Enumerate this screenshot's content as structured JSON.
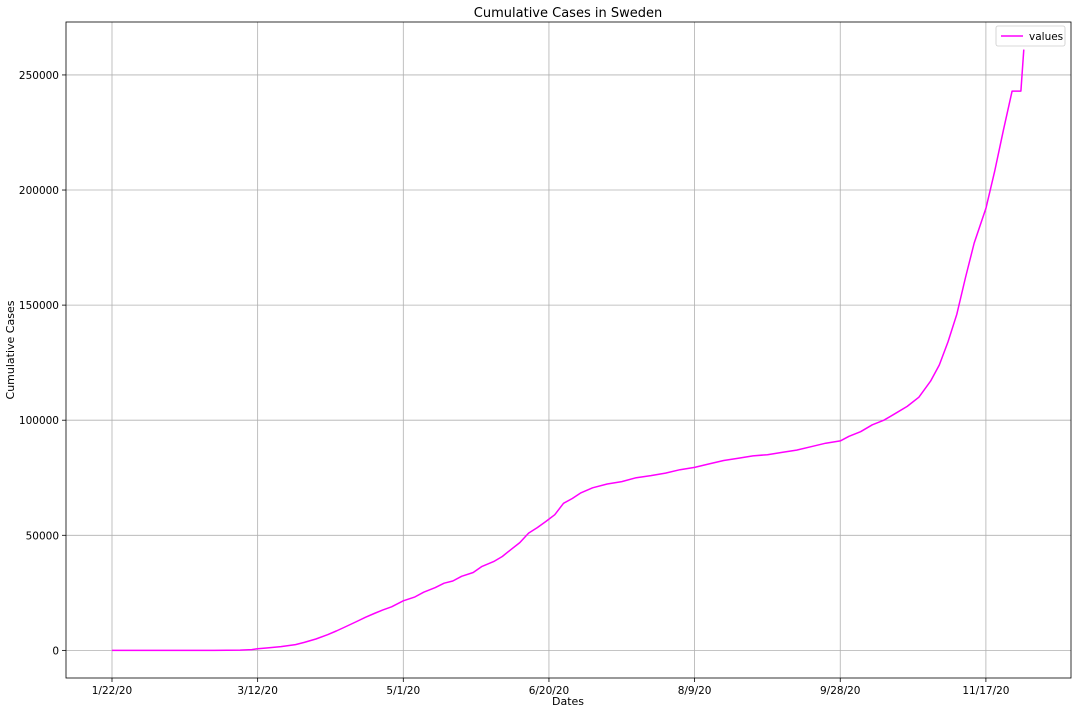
{
  "chart_data": {
    "type": "line",
    "title": "Cumulative Cases in Sweden",
    "xlabel": "Dates",
    "ylabel": "Cumulative Cases",
    "grid": true,
    "legend_position": "top-right",
    "x_tick_labels": [
      "1/22/20",
      "3/12/20",
      "5/1/20",
      "6/20/20",
      "8/9/20",
      "9/28/20",
      "11/17/20"
    ],
    "y_ticks": [
      0,
      50000,
      100000,
      150000,
      200000,
      250000
    ],
    "ylim": [
      -12000,
      273000
    ],
    "series_color": "#ff00ff",
    "series": [
      {
        "name": "values",
        "points": [
          [
            "1/22/20",
            0
          ],
          [
            "2/1/20",
            1
          ],
          [
            "2/26/20",
            5
          ],
          [
            "3/6/20",
            137
          ],
          [
            "3/10/20",
            355
          ],
          [
            "3/12/20",
            687
          ],
          [
            "3/15/20",
            1040
          ],
          [
            "3/20/20",
            1639
          ],
          [
            "3/25/20",
            2526
          ],
          [
            "3/28/20",
            3447
          ],
          [
            "4/1/20",
            4947
          ],
          [
            "4/5/20",
            6830
          ],
          [
            "4/8/20",
            8419
          ],
          [
            "4/11/20",
            10151
          ],
          [
            "4/15/20",
            12540
          ],
          [
            "4/18/20",
            14385
          ],
          [
            "4/21/20",
            16004
          ],
          [
            "4/24/20",
            17567
          ],
          [
            "4/27/20",
            18926
          ],
          [
            "5/1/20",
            21520
          ],
          [
            "5/5/20",
            23216
          ],
          [
            "5/8/20",
            25265
          ],
          [
            "5/12/20",
            27272
          ],
          [
            "5/15/20",
            29207
          ],
          [
            "5/18/20",
            30143
          ],
          [
            "5/21/20",
            32172
          ],
          [
            "5/25/20",
            33843
          ],
          [
            "5/28/20",
            36476
          ],
          [
            "6/1/20",
            38589
          ],
          [
            "6/4/20",
            40803
          ],
          [
            "6/7/20",
            43887
          ],
          [
            "6/10/20",
            46814
          ],
          [
            "6/13/20",
            50931
          ],
          [
            "6/16/20",
            53323
          ],
          [
            "6/19/20",
            56043
          ],
          [
            "6/22/20",
            58932
          ],
          [
            "6/25/20",
            63890
          ],
          [
            "6/28/20",
            66000
          ],
          [
            "7/1/20",
            68451
          ],
          [
            "7/5/20",
            70639
          ],
          [
            "7/10/20",
            72286
          ],
          [
            "7/15/20",
            73344
          ],
          [
            "7/20/20",
            75000
          ],
          [
            "7/25/20",
            75926
          ],
          [
            "7/30/20",
            77000
          ],
          [
            "8/4/20",
            78500
          ],
          [
            "8/9/20",
            79495
          ],
          [
            "8/14/20",
            81000
          ],
          [
            "8/19/20",
            82500
          ],
          [
            "8/24/20",
            83500
          ],
          [
            "8/29/20",
            84500
          ],
          [
            "9/3/20",
            85000
          ],
          [
            "9/8/20",
            86000
          ],
          [
            "9/13/20",
            87000
          ],
          [
            "9/18/20",
            88500
          ],
          [
            "9/23/20",
            90000
          ],
          [
            "9/28/20",
            91000
          ],
          [
            "10/1/20",
            93000
          ],
          [
            "10/5/20",
            95000
          ],
          [
            "10/9/20",
            98000
          ],
          [
            "10/13/20",
            100000
          ],
          [
            "10/17/20",
            103000
          ],
          [
            "10/21/20",
            106000
          ],
          [
            "10/25/20",
            110000
          ],
          [
            "10/29/20",
            117000
          ],
          [
            "11/1/20",
            124000
          ],
          [
            "11/4/20",
            134000
          ],
          [
            "11/7/20",
            146000
          ],
          [
            "11/10/20",
            162000
          ],
          [
            "11/13/20",
            177000
          ],
          [
            "11/17/20",
            192000
          ],
          [
            "11/20/20",
            208000
          ],
          [
            "11/23/20",
            226000
          ],
          [
            "11/26/20",
            243000
          ],
          [
            "11/29/20",
            243000
          ],
          [
            "11/30/20",
            261000
          ]
        ]
      }
    ]
  }
}
